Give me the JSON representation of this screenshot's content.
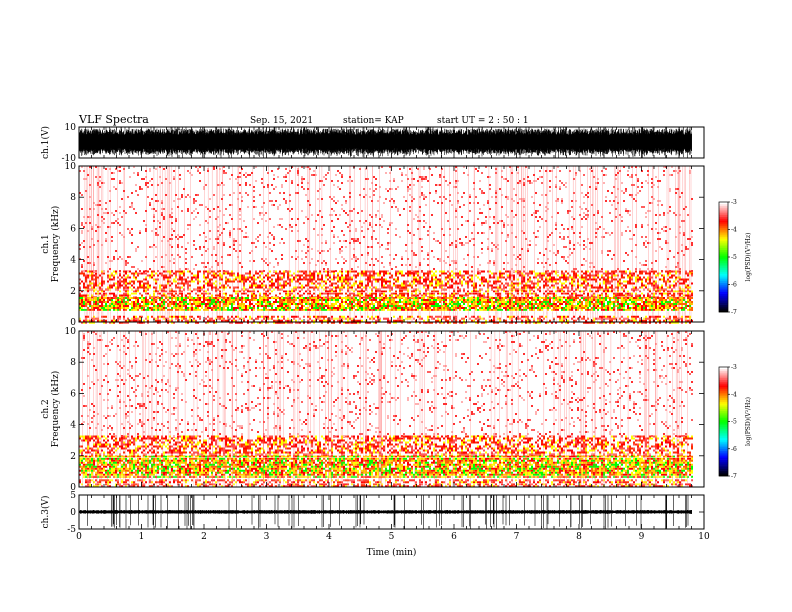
{
  "header": {
    "title": "VLF Spectra",
    "date": "Sep. 15, 2021",
    "station": "station= KAP",
    "start": "start  UT  =   2  : 50 : 1"
  },
  "colors": {
    "background": "#ffffff",
    "waveform": "#000000",
    "spectrogram_low": "#ff0000",
    "spectrogram_mid": "#ffff00",
    "spectrogram_high": "#00ff00",
    "colormap": [
      "#000000",
      "#0000ff",
      "#00ffff",
      "#00ff00",
      "#ffff00",
      "#ff0000",
      "#ffffff"
    ]
  },
  "chart_data": [
    {
      "type": "line",
      "panel": "waveform-ch1",
      "ylabel": "ch.1(V)",
      "ylim": [
        -10,
        10
      ],
      "yticks": [
        "10",
        "-10"
      ],
      "xlim": [
        0,
        10
      ],
      "description": "dense waveform filling most of the range, frequent spikes to ±10 V",
      "amplitude_v": 9
    },
    {
      "type": "heatmap",
      "panel": "spectrogram-ch1",
      "ylabel": "ch.1\nFrequency (kHz)",
      "ylabel_lines": [
        "ch.1",
        "Frequency  (kHz)"
      ],
      "ylim": [
        0,
        10
      ],
      "yticks": [
        "0",
        "2",
        "4",
        "6",
        "8",
        "10"
      ],
      "xlim": [
        0,
        10
      ],
      "data_end_min": 9.8,
      "bands_khz": [
        {
          "from": 0.0,
          "to": 0.4,
          "level": "medium"
        },
        {
          "from": 0.8,
          "to": 1.6,
          "level": "high"
        },
        {
          "from": 1.6,
          "to": 3.3,
          "level": "medium"
        },
        {
          "from": 3.3,
          "to": 10.0,
          "level": "low"
        }
      ],
      "colorbar": {
        "label": "log(PSD)(V²/Hz)",
        "range": [
          -7,
          -3
        ],
        "ticks": [
          "-3",
          "-4",
          "-5",
          "-6",
          "-7"
        ]
      }
    },
    {
      "type": "heatmap",
      "panel": "spectrogram-ch2",
      "ylabel_lines": [
        "ch.2",
        "Frequency  (kHz)"
      ],
      "ylim": [
        0,
        10
      ],
      "yticks": [
        "0",
        "2",
        "4",
        "6",
        "8",
        "10"
      ],
      "xlim": [
        0,
        10
      ],
      "data_end_min": 9.8,
      "bands_khz": [
        {
          "from": 0.0,
          "to": 0.5,
          "level": "medium"
        },
        {
          "from": 0.6,
          "to": 2.0,
          "level": "high"
        },
        {
          "from": 2.0,
          "to": 3.3,
          "level": "medium"
        },
        {
          "from": 3.3,
          "to": 10.0,
          "level": "low"
        }
      ],
      "colorbar": {
        "label": "log(PSD)(V²/Hz)",
        "range": [
          -7,
          -3
        ],
        "ticks": [
          "-3",
          "-4",
          "-5",
          "-6",
          "-7"
        ]
      }
    },
    {
      "type": "line",
      "panel": "waveform-ch3",
      "ylabel": "ch.3(V)",
      "ylim": [
        -5,
        5
      ],
      "yticks": [
        "5",
        "0",
        "-5"
      ],
      "xlim": [
        0,
        10
      ],
      "xlabel": "Time  (min)",
      "xticks": [
        "0",
        "1",
        "2",
        "3",
        "4",
        "5",
        "6",
        "7",
        "8",
        "9",
        "10"
      ],
      "description": "narrow waveform band around 0 V",
      "amplitude_v": 0.6
    }
  ]
}
